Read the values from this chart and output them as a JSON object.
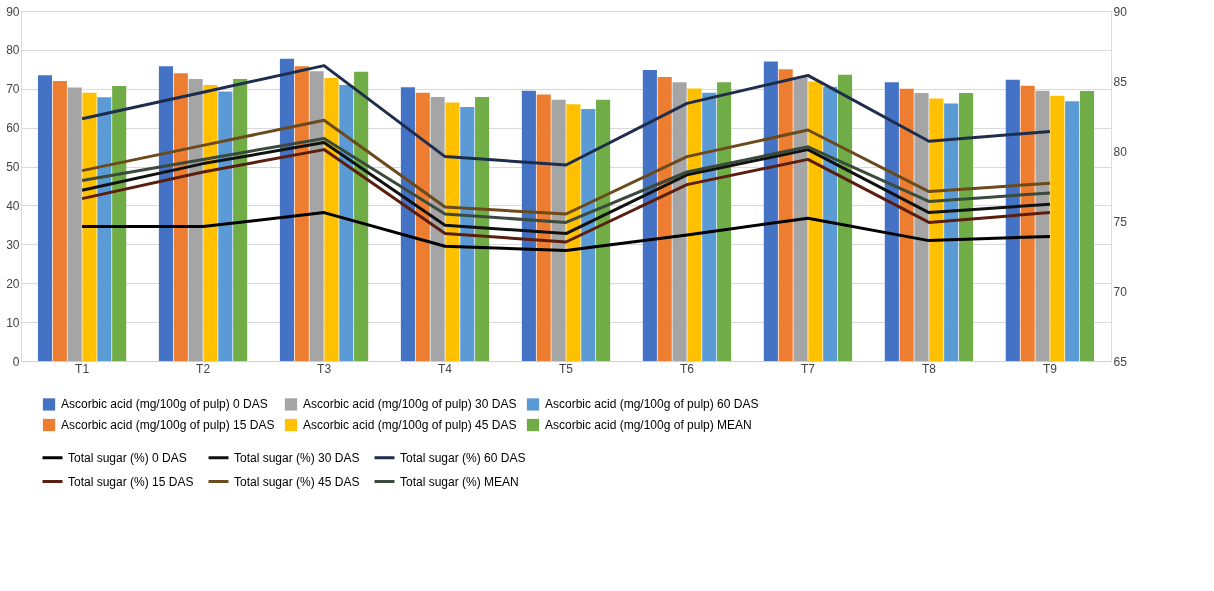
{
  "chart_data": {
    "type": "bar",
    "categories": [
      "T1",
      "T2",
      "T3",
      "T4",
      "T5",
      "T6",
      "T7",
      "T8",
      "T9"
    ],
    "series": [
      {
        "name": "Ascorbic acid (mg/100g of pulp) 0 DAS",
        "color": "#4472c4",
        "values": [
          73.5,
          75.8,
          77.7,
          70.4,
          69.5,
          74.8,
          77,
          71.7,
          72.3
        ]
      },
      {
        "name": "Ascorbic acid (mg/100g of pulp) 15 DAS",
        "color": "#ed7d31",
        "values": [
          72,
          74,
          75.8,
          69,
          68.5,
          73,
          75,
          70,
          70.8
        ]
      },
      {
        "name": "Ascorbic acid (mg/100g of pulp) 30 DAS",
        "color": "#a5a5a5",
        "values": [
          70.3,
          72.5,
          74.5,
          67.9,
          67.2,
          71.7,
          73,
          68.9,
          69.5
        ]
      },
      {
        "name": "Ascorbic acid (mg/100g of pulp) 45 DAS",
        "color": "#ffc000",
        "values": [
          69,
          71,
          72.8,
          66.5,
          66,
          70.1,
          71.9,
          67.5,
          68.2
        ]
      },
      {
        "name": "Ascorbic acid (mg/100g of pulp) 60 DAS",
        "color": "#5b9bd5",
        "values": [
          67.8,
          69.3,
          71,
          65.3,
          64.8,
          69,
          70.5,
          66.2,
          66.8
        ]
      },
      {
        "name": "Ascorbic acid (mg/100g of pulp) MEAN",
        "color": "#70ad47",
        "values": [
          70.7,
          72.5,
          74.4,
          67.9,
          67.2,
          71.7,
          73.6,
          68.9,
          69.4
        ]
      },
      {
        "name": "Total sugar (%) 0 DAS",
        "type": "line",
        "axis": "y2",
        "color": "#000000",
        "values": [
          74.6,
          74.6,
          75.6,
          73.2,
          72.9,
          74,
          75.2,
          73.6,
          73.9
        ]
      },
      {
        "name": "Total sugar (%) 15 DAS",
        "type": "line",
        "axis": "y2",
        "color": "#5a1e0e",
        "values": [
          76.6,
          78.5,
          80.1,
          74.1,
          73.5,
          77.6,
          79.4,
          74.9,
          75.6
        ]
      },
      {
        "name": "Total sugar (%) 30 DAS",
        "type": "line",
        "axis": "y2",
        "color": "#111111",
        "values": [
          77.2,
          79.1,
          80.6,
          74.7,
          74.1,
          78.3,
          80.1,
          75.6,
          76.2
        ]
      },
      {
        "name": "Total sugar (%) 45 DAS",
        "type": "line",
        "axis": "y2",
        "color": "#6b4a1c",
        "values": [
          78.6,
          80.4,
          82.2,
          76,
          75.5,
          79.6,
          81.5,
          77.1,
          77.7
        ]
      },
      {
        "name": "Total sugar (%) 60 DAS",
        "type": "line",
        "axis": "y2",
        "color": "#1f2d4d",
        "values": [
          82.3,
          84.2,
          86.1,
          79.6,
          79,
          83.4,
          85.4,
          80.7,
          81.4
        ]
      },
      {
        "name": "Total sugar (%) MEAN",
        "type": "line",
        "axis": "y2",
        "color": "#3a4a3c",
        "values": [
          77.9,
          79.4,
          80.9,
          75.5,
          74.9,
          78.5,
          80.3,
          76.4,
          77
        ]
      }
    ],
    "ylim": [
      0,
      90
    ],
    "yticks": [
      0,
      10,
      20,
      30,
      40,
      50,
      60,
      70,
      80,
      90
    ],
    "y2lim": [
      65,
      90
    ],
    "y2ticks": [
      65,
      70,
      75,
      80,
      85,
      90
    ],
    "grid": "y",
    "legend": "bottom"
  }
}
